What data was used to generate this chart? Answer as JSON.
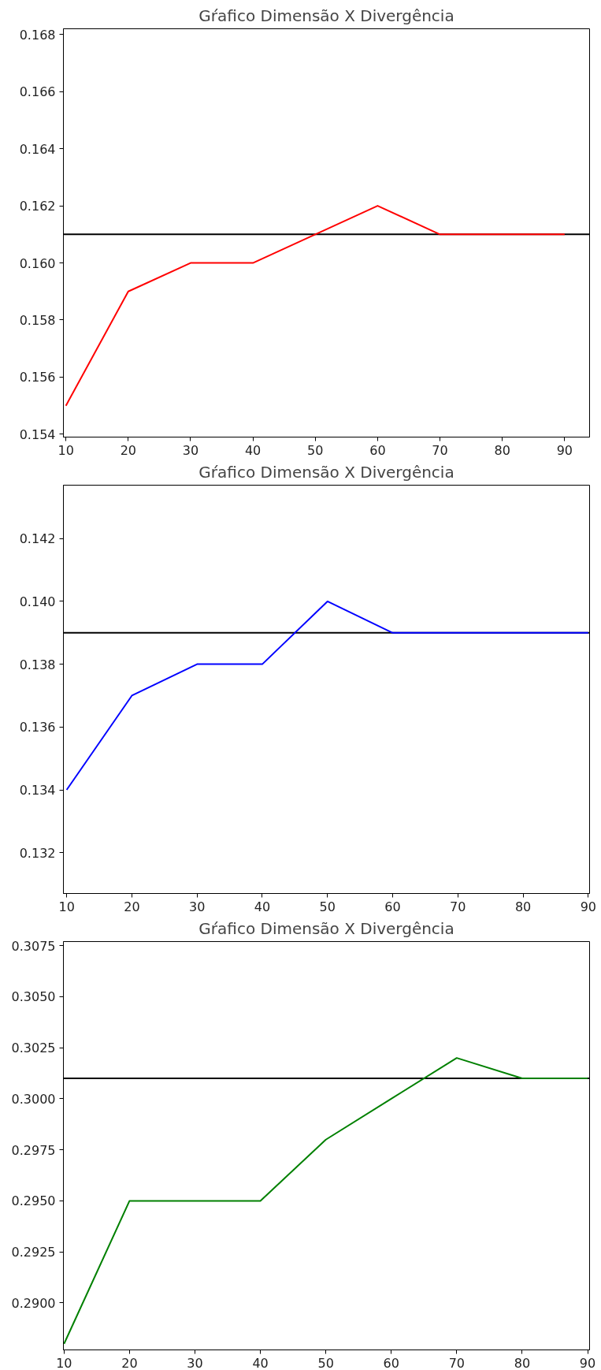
{
  "chart_data": [
    {
      "type": "line",
      "title": "Gŕafico Dimensão X Divergência",
      "x": [
        10,
        20,
        30,
        40,
        50,
        60,
        70,
        80,
        90
      ],
      "xlim": [
        9.6,
        94.0
      ],
      "xticks": [
        10,
        20,
        30,
        40,
        50,
        60,
        70,
        80,
        90
      ],
      "ylim": [
        0.1539,
        0.1682
      ],
      "yticks": [
        {
          "value": 0.154,
          "label": "0.154"
        },
        {
          "value": 0.156,
          "label": "0.156"
        },
        {
          "value": 0.158,
          "label": "0.158"
        },
        {
          "value": 0.16,
          "label": "0.160"
        },
        {
          "value": 0.162,
          "label": "0.162"
        },
        {
          "value": 0.164,
          "label": "0.164"
        },
        {
          "value": 0.166,
          "label": "0.166"
        },
        {
          "value": 0.168,
          "label": "0.168"
        }
      ],
      "series": [
        {
          "color": "#ff0000",
          "values": [
            0.155,
            0.159,
            0.16,
            0.16,
            0.161,
            0.162,
            0.161,
            0.161,
            0.161
          ]
        }
      ],
      "ref_lines": [
        {
          "axis": "y",
          "value": 0.161,
          "color": "#000000"
        }
      ],
      "grid": false
    },
    {
      "type": "line",
      "title": "Gŕafico Dimensão X Divergência",
      "x": [
        10,
        20,
        30,
        40,
        50,
        60,
        70,
        80,
        90
      ],
      "xlim": [
        9.5,
        90.2
      ],
      "xticks": [
        10,
        20,
        30,
        40,
        50,
        60,
        70,
        80,
        90
      ],
      "ylim": [
        0.1307,
        0.1437
      ],
      "yticks": [
        {
          "value": 0.132,
          "label": "0.132"
        },
        {
          "value": 0.134,
          "label": "0.134"
        },
        {
          "value": 0.136,
          "label": "0.136"
        },
        {
          "value": 0.138,
          "label": "0.138"
        },
        {
          "value": 0.14,
          "label": "0.140"
        },
        {
          "value": 0.142,
          "label": "0.142"
        }
      ],
      "series": [
        {
          "color": "#0000ff",
          "values": [
            0.134,
            0.137,
            0.138,
            0.138,
            0.14,
            0.139,
            0.139,
            0.139,
            0.139
          ]
        }
      ],
      "ref_lines": [
        {
          "axis": "y",
          "value": 0.139,
          "color": "#000000"
        }
      ],
      "grid": false
    },
    {
      "type": "line",
      "title": "Gŕafico Dimensão X Divergência",
      "x": [
        10,
        20,
        30,
        40,
        50,
        60,
        70,
        80,
        90
      ],
      "xlim": [
        9.9,
        90.3
      ],
      "xticks": [
        10,
        20,
        30,
        40,
        50,
        60,
        70,
        80,
        90
      ],
      "ylim": [
        0.2877,
        0.3077
      ],
      "yticks": [
        {
          "value": 0.29,
          "label": "0.2900"
        },
        {
          "value": 0.2925,
          "label": "0.2925"
        },
        {
          "value": 0.295,
          "label": "0.2950"
        },
        {
          "value": 0.2975,
          "label": "0.2975"
        },
        {
          "value": 0.3,
          "label": "0.3000"
        },
        {
          "value": 0.3025,
          "label": "0.3025"
        },
        {
          "value": 0.305,
          "label": "0.3050"
        },
        {
          "value": 0.3075,
          "label": "0.3075"
        }
      ],
      "series": [
        {
          "color": "#008000",
          "values": [
            0.288,
            0.295,
            0.295,
            0.295,
            0.298,
            0.3,
            0.302,
            0.301,
            0.301
          ]
        }
      ],
      "ref_lines": [
        {
          "axis": "y",
          "value": 0.301,
          "color": "#000000"
        }
      ],
      "grid": false
    }
  ]
}
